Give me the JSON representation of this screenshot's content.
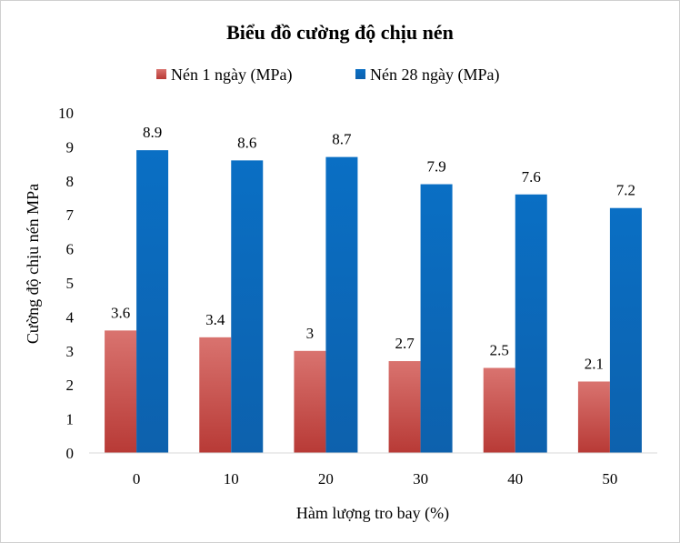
{
  "chart_data": {
    "type": "bar",
    "title": "Biểu đồ cường độ chịu nén",
    "xlabel": "Hàm lượng tro bay (%)",
    "ylabel": "Cường độ chịu nén MPa",
    "categories": [
      "0",
      "10",
      "20",
      "30",
      "40",
      "50"
    ],
    "series": [
      {
        "name": "Nén 1 ngày (MPa)",
        "color": "#c0504d",
        "values": [
          3.6,
          3.4,
          3,
          2.7,
          2.5,
          2.1
        ],
        "labels": [
          "3.6",
          "3.4",
          "3",
          "2.7",
          "2.5",
          "2.1"
        ]
      },
      {
        "name": "Nén 28 ngày (MPa)",
        "color": "#0070c0",
        "values": [
          8.9,
          8.6,
          8.7,
          7.9,
          7.6,
          7.2
        ],
        "labels": [
          "8.9",
          "8.6",
          "8.7",
          "7.9",
          "7.6",
          "7.2"
        ]
      }
    ],
    "ylim": [
      0,
      10
    ],
    "yticks": [
      "0",
      "1",
      "2",
      "3",
      "4",
      "5",
      "6",
      "7",
      "8",
      "9",
      "10"
    ],
    "grid": false,
    "legend_position": "top"
  }
}
